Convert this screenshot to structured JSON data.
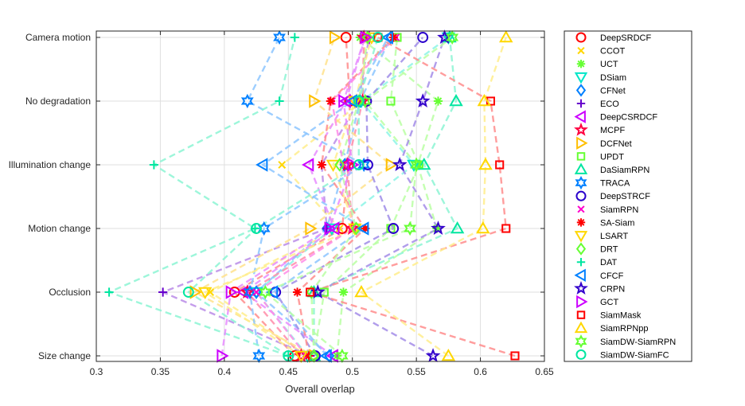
{
  "chart_data": {
    "type": "scatter",
    "title": "",
    "xlabel": "Overall overlap",
    "ylabel": "",
    "xlim": [
      0.3,
      0.65
    ],
    "xticks": [
      "0.3",
      "0.35",
      "0.4",
      "0.45",
      "0.5",
      "0.55",
      "0.6",
      "0.65"
    ],
    "categories": [
      "Size change",
      "Occlusion",
      "Motion change",
      "Illumination change",
      "No degradation",
      "Camera motion"
    ],
    "grid": true,
    "legend_position": "outside-right",
    "series": [
      {
        "name": "DeepSRDCF",
        "marker": "circle",
        "color": "#ff0000",
        "values": [
          0.455,
          0.408,
          0.492,
          0.497,
          0.498,
          0.495
        ]
      },
      {
        "name": "CCOT",
        "marker": "x",
        "color": "#ffd700",
        "values": [
          0.465,
          0.389,
          0.49,
          0.445,
          0.508,
          0.51
        ]
      },
      {
        "name": "UCT",
        "marker": "asterisk",
        "color": "#66ff33",
        "values": [
          0.488,
          0.493,
          0.566,
          0.551,
          0.567,
          0.506
        ]
      },
      {
        "name": "DSiam",
        "marker": "triangle-down",
        "color": "#00e6c8",
        "values": [
          0.465,
          0.425,
          0.484,
          0.548,
          0.507,
          0.575
        ]
      },
      {
        "name": "CFNet",
        "marker": "diamond",
        "color": "#0080ff",
        "values": [
          0.482,
          0.425,
          0.48,
          0.494,
          0.506,
          0.53
        ]
      },
      {
        "name": "ECO",
        "marker": "plus",
        "color": "#6600cc",
        "values": [
          0.467,
          0.352,
          0.48,
          0.476,
          0.505,
          0.513
        ]
      },
      {
        "name": "DeepCSRDCF",
        "marker": "triangle-left",
        "color": "#cc00ff",
        "values": [
          0.485,
          0.415,
          0.486,
          0.466,
          0.495,
          0.51
        ]
      },
      {
        "name": "MCPF",
        "marker": "hexagram-5",
        "color": "#ff0040",
        "values": [
          0.46,
          0.418,
          0.5,
          0.496,
          0.508,
          0.509
        ]
      },
      {
        "name": "DCFNet",
        "marker": "triangle-right",
        "color": "#ffbf00",
        "values": [
          0.47,
          0.377,
          0.467,
          0.53,
          0.47,
          0.486
        ]
      },
      {
        "name": "UPDT",
        "marker": "square",
        "color": "#66ff33",
        "values": [
          0.47,
          0.478,
          0.53,
          0.552,
          0.53,
          0.535
        ]
      },
      {
        "name": "DaSiamRPN",
        "marker": "triangle-up",
        "color": "#00e6a0",
        "values": [
          0.47,
          0.47,
          0.582,
          0.556,
          0.581,
          0.576
        ]
      },
      {
        "name": "TRACA",
        "marker": "hexagram-6",
        "color": "#0080ff",
        "values": [
          0.427,
          0.42,
          0.431,
          0.509,
          0.418,
          0.443
        ]
      },
      {
        "name": "DeepSTRCF",
        "marker": "circle",
        "color": "#2a00cc",
        "values": [
          0.471,
          0.44,
          0.532,
          0.512,
          0.511,
          0.555
        ]
      },
      {
        "name": "SiamRPN",
        "marker": "x",
        "color": "#ff00cc",
        "values": [
          0.464,
          0.425,
          0.5,
          0.493,
          0.484,
          0.534
        ]
      },
      {
        "name": "SA-Siam",
        "marker": "asterisk",
        "color": "#ff0000",
        "values": [
          0.466,
          0.457,
          0.51,
          0.476,
          0.483,
          0.532
        ]
      },
      {
        "name": "LSART",
        "marker": "triangle-down",
        "color": "#ffd700",
        "values": [
          0.46,
          0.385,
          0.502,
          0.485,
          0.502,
          0.515
        ]
      },
      {
        "name": "DRT",
        "marker": "diamond",
        "color": "#66ff33",
        "values": [
          0.47,
          0.468,
          0.503,
          0.49,
          0.505,
          0.512
        ]
      },
      {
        "name": "DAT",
        "marker": "plus",
        "color": "#00e6a0",
        "values": [
          0.45,
          0.31,
          0.424,
          0.345,
          0.443,
          0.455
        ]
      },
      {
        "name": "CFCF",
        "marker": "triangle-left",
        "color": "#0080ff",
        "values": [
          0.48,
          0.438,
          0.509,
          0.43,
          0.5,
          0.528
        ]
      },
      {
        "name": "CRPN",
        "marker": "hexagram-5",
        "color": "#3300cc",
        "values": [
          0.563,
          0.473,
          0.567,
          0.537,
          0.555,
          0.572
        ]
      },
      {
        "name": "GCT",
        "marker": "triangle-right",
        "color": "#cc00ff",
        "values": [
          0.398,
          0.405,
          0.482,
          0.5,
          0.493,
          0.51
        ]
      },
      {
        "name": "SiamMask",
        "marker": "square",
        "color": "#ff0000",
        "values": [
          0.627,
          0.467,
          0.62,
          0.615,
          0.608,
          0.52
        ]
      },
      {
        "name": "SiamRPNpp",
        "marker": "triangle-up",
        "color": "#ffd700",
        "values": [
          0.575,
          0.507,
          0.602,
          0.604,
          0.603,
          0.62
        ]
      },
      {
        "name": "SiamDW-SiamRPN",
        "marker": "hexagram-6",
        "color": "#66ff33",
        "values": [
          0.492,
          0.432,
          0.545,
          0.55,
          0.51,
          0.578
        ]
      },
      {
        "name": "SiamDW-SiamFC",
        "marker": "circle",
        "color": "#00e6a0",
        "values": [
          0.45,
          0.372,
          0.425,
          0.505,
          0.505,
          0.52
        ]
      }
    ]
  }
}
